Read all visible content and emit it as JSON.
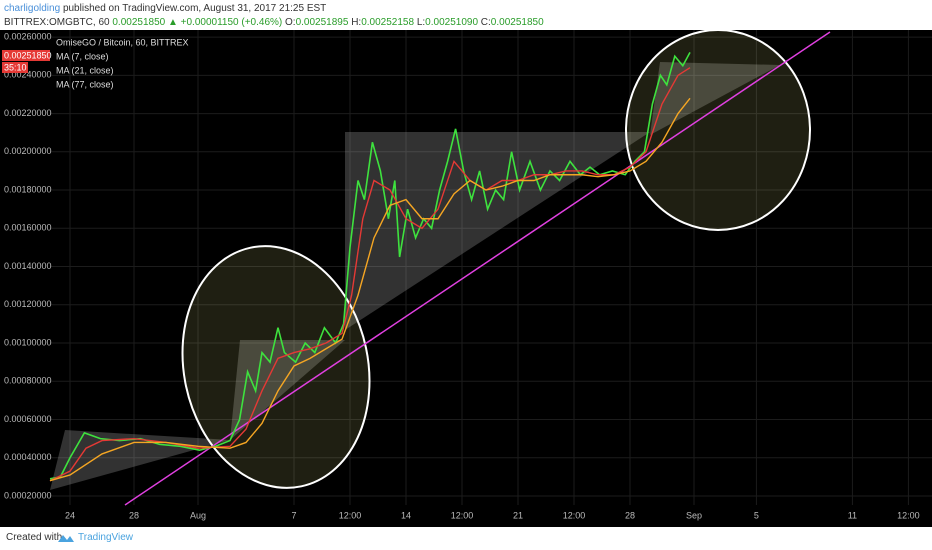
{
  "header": {
    "author": "charligolding",
    "published": "published on TradingView.com, August 31, 2017 21:25 EST",
    "symbol": "BITTREX:OMGBTC, 60",
    "last": "0.00251850",
    "change": "▲ +0.00001150 (+0.46%)",
    "o_label": "O:",
    "o": "0.00251895",
    "h_label": "H:",
    "h": "0.00252158",
    "l_label": "L:",
    "l": "0.00251090",
    "c_label": "C:",
    "c": "0.00251850"
  },
  "footer": {
    "created": "Created with",
    "brand": "TradingView"
  },
  "chart_data": {
    "type": "line",
    "price_tag": "0.00251850",
    "countdown": "35:10",
    "ylim": [
      0.000153,
      0.002637
    ],
    "yticks": [
      {
        "value": 0.0002,
        "label": "0.00020000"
      },
      {
        "value": 0.0004,
        "label": "0.00040000"
      },
      {
        "value": 0.0006,
        "label": "0.00060000"
      },
      {
        "value": 0.0008,
        "label": "0.00080000"
      },
      {
        "value": 0.001,
        "label": "0.00100000"
      },
      {
        "value": 0.0012,
        "label": "0.00120000"
      },
      {
        "value": 0.0014,
        "label": "0.00140000"
      },
      {
        "value": 0.0016,
        "label": "0.00160000"
      },
      {
        "value": 0.0018,
        "label": "0.00180000"
      },
      {
        "value": 0.002,
        "label": "0.00200000"
      },
      {
        "value": 0.0022,
        "label": "0.00220000"
      },
      {
        "value": 0.0024,
        "label": "0.00240000"
      },
      {
        "value": 0.0026,
        "label": "0.00260000"
      }
    ],
    "xlim": [
      -1.25,
      53.875
    ],
    "xticks": [
      {
        "value": 0,
        "label": "24"
      },
      {
        "value": 4,
        "label": "28"
      },
      {
        "value": 8,
        "label": "Aug"
      },
      {
        "value": 14,
        "label": "7"
      },
      {
        "value": 17.5,
        "label": "12:00"
      },
      {
        "value": 21,
        "label": "14"
      },
      {
        "value": 24.5,
        "label": "12:00"
      },
      {
        "value": 28,
        "label": "21"
      },
      {
        "value": 31.5,
        "label": "12:00"
      },
      {
        "value": 35,
        "label": "28"
      },
      {
        "value": 39,
        "label": "Sep"
      },
      {
        "value": 42.9,
        "label": "5"
      },
      {
        "value": 48.9,
        "label": "11"
      },
      {
        "value": 52.4,
        "label": "12:00"
      }
    ],
    "grid": true,
    "series": [
      {
        "name": "OmiseGO / Bitcoin, 60, BITTREX",
        "color": "#3ee23e",
        "x": [
          -1.25,
          -0.6,
          0,
          0.9,
          1.9,
          3.1,
          4.4,
          5.6,
          6.9,
          8.1,
          9.1,
          10,
          10.6,
          11.1,
          11.6,
          12,
          12.5,
          13,
          13.4,
          14.1,
          14.7,
          15.3,
          15.9,
          16.6,
          17.1,
          17.5,
          18,
          18.4,
          18.9,
          19.4,
          19.9,
          20.3,
          20.6,
          21.1,
          21.6,
          22.1,
          22.6,
          23.1,
          23.6,
          24.1,
          24.6,
          25.1,
          25.6,
          26.1,
          26.6,
          27.1,
          27.6,
          28.1,
          28.75,
          29.4,
          30,
          30.6,
          31.25,
          31.9,
          32.5,
          33.1,
          33.9,
          34.7,
          35.3,
          35.9,
          36.4,
          36.9,
          37.3,
          37.8,
          38.3,
          38.75
        ],
        "values": [
          0.00029,
          0.0003,
          0.0004,
          0.00053,
          0.0005,
          0.00049,
          0.0005,
          0.00047,
          0.00046,
          0.00044,
          0.00046,
          0.00049,
          0.0006,
          0.00085,
          0.00075,
          0.00095,
          0.0009,
          0.00108,
          0.00095,
          0.0009,
          0.001,
          0.00095,
          0.00108,
          0.001,
          0.0011,
          0.0015,
          0.00185,
          0.00175,
          0.00205,
          0.0019,
          0.00165,
          0.00185,
          0.00145,
          0.0017,
          0.00155,
          0.00165,
          0.0016,
          0.0018,
          0.00195,
          0.00212,
          0.0019,
          0.00175,
          0.0019,
          0.0017,
          0.0018,
          0.00175,
          0.002,
          0.0018,
          0.00195,
          0.0018,
          0.0019,
          0.00185,
          0.00195,
          0.00188,
          0.00192,
          0.00188,
          0.0019,
          0.00188,
          0.00195,
          0.002,
          0.00225,
          0.0024,
          0.00235,
          0.0025,
          0.00245,
          0.00252
        ]
      },
      {
        "name": "MA (7, close)",
        "color": "#e53935",
        "x": [
          -1.25,
          0,
          1,
          2,
          4,
          6,
          8,
          10,
          11,
          12,
          13,
          14,
          15,
          16,
          17,
          17.6,
          18.3,
          19,
          20,
          21,
          22,
          23,
          24,
          25,
          26,
          27,
          28,
          29,
          30,
          31,
          32,
          33,
          34,
          35,
          36,
          37,
          38,
          38.75
        ],
        "values": [
          0.00028,
          0.00033,
          0.00045,
          0.00049,
          0.0005,
          0.00048,
          0.00045,
          0.00046,
          0.00055,
          0.00075,
          0.00092,
          0.00095,
          0.00097,
          0.001,
          0.00105,
          0.00125,
          0.00165,
          0.00185,
          0.0018,
          0.00165,
          0.0016,
          0.0017,
          0.00195,
          0.00185,
          0.0018,
          0.00185,
          0.00185,
          0.00188,
          0.00188,
          0.0019,
          0.0019,
          0.00188,
          0.00188,
          0.00192,
          0.002,
          0.00225,
          0.0024,
          0.00244
        ]
      },
      {
        "name": "MA (21, close)",
        "color": "#f5a623",
        "x": [
          -1.25,
          0,
          2,
          4,
          6,
          8,
          10,
          11,
          12,
          13,
          14,
          15,
          16,
          17,
          18,
          19,
          20,
          21,
          22,
          23,
          24,
          25,
          26,
          27,
          28,
          29,
          30,
          31,
          32,
          33,
          34,
          35,
          36,
          37,
          38,
          38.75
        ],
        "values": [
          0.00028,
          0.00031,
          0.00042,
          0.00048,
          0.00048,
          0.00046,
          0.00045,
          0.00048,
          0.00058,
          0.00075,
          0.00088,
          0.00092,
          0.00097,
          0.00102,
          0.00125,
          0.00155,
          0.00172,
          0.00175,
          0.00165,
          0.00165,
          0.00178,
          0.00185,
          0.0018,
          0.00182,
          0.00185,
          0.00185,
          0.00188,
          0.00188,
          0.00188,
          0.00187,
          0.00188,
          0.0019,
          0.00195,
          0.00205,
          0.0022,
          0.00228
        ]
      },
      {
        "name": "MA (77, close)",
        "color": "#4a90d9",
        "x": [],
        "values": []
      }
    ]
  }
}
